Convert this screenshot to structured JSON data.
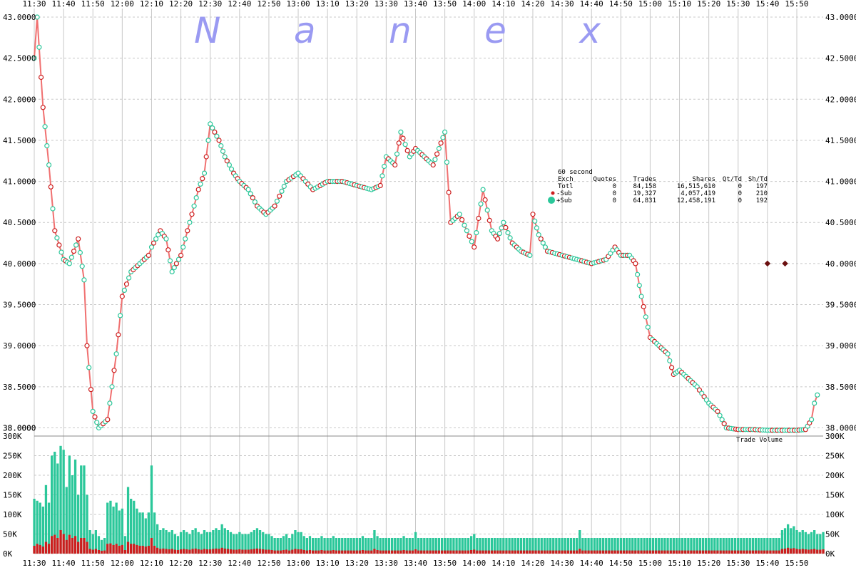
{
  "watermark": "Nanex",
  "colors": {
    "grid": "#c8c8c8",
    "up": "#2bc79a",
    "down": "#cc1e1e",
    "bar_range": "#f07070",
    "marker": "#6b1010"
  },
  "stats": {
    "title": "60 second",
    "headers": [
      "Exch",
      "Quotes",
      "Trades",
      "Shares",
      "Qt/Td",
      "Sh/Td"
    ],
    "rows": [
      {
        "label": "Totl",
        "quotes": "0",
        "trades": "84,158",
        "shares": "16,515,610",
        "qt_td": "0",
        "sh_td": "197"
      },
      {
        "label": "-Sub",
        "quotes": "0",
        "trades": "19,327",
        "shares": "4,057,419",
        "qt_td": "0",
        "sh_td": "210"
      },
      {
        "label": "+Sub",
        "quotes": "0",
        "trades": "64,831",
        "shares": "12,458,191",
        "qt_td": "0",
        "sh_td": "192"
      }
    ]
  },
  "chart_data": [
    {
      "type": "line",
      "ylim": [
        37.9,
        43.0
      ],
      "yticks": [
        "43.0000",
        "42.5000",
        "42.0000",
        "41.5000",
        "41.0000",
        "40.5000",
        "40.0000",
        "39.5000",
        "39.0000",
        "38.5000",
        "38.0000"
      ],
      "xticks": [
        "11:30",
        "11:40",
        "11:50",
        "12:00",
        "12:10",
        "12:20",
        "12:30",
        "12:40",
        "12:50",
        "13:00",
        "13:10",
        "13:20",
        "13:30",
        "13:40",
        "13:50",
        "14:00",
        "14:10",
        "14:20",
        "14:30",
        "14:40",
        "14:50",
        "15:00",
        "15:10",
        "15:20",
        "15:30",
        "15:40",
        "15:50"
      ],
      "grid": true,
      "x": [
        "11:30",
        "11:31",
        "11:33",
        "11:35",
        "11:37",
        "11:40",
        "11:42",
        "11:45",
        "11:47",
        "11:48",
        "11:50",
        "11:52",
        "11:55",
        "11:58",
        "12:00",
        "12:03",
        "12:06",
        "12:09",
        "12:10",
        "12:13",
        "12:15",
        "12:17",
        "12:20",
        "12:23",
        "12:26",
        "12:28",
        "12:30",
        "12:33",
        "12:35",
        "12:38",
        "12:40",
        "12:43",
        "12:46",
        "12:49",
        "12:52",
        "12:56",
        "13:00",
        "13:05",
        "13:10",
        "13:15",
        "13:20",
        "13:25",
        "13:28",
        "13:30",
        "13:33",
        "13:35",
        "13:38",
        "13:40",
        "13:43",
        "13:46",
        "13:48",
        "13:50",
        "13:52",
        "13:55",
        "14:00",
        "14:03",
        "14:06",
        "14:08",
        "14:10",
        "14:13",
        "14:16",
        "14:19",
        "14:20",
        "14:22",
        "14:25",
        "14:30",
        "14:35",
        "14:40",
        "14:45",
        "14:48",
        "14:50",
        "14:53",
        "14:55",
        "14:57",
        "15:00",
        "15:03",
        "15:06",
        "15:08",
        "15:10",
        "15:13",
        "15:16",
        "15:20",
        "15:23",
        "15:26",
        "15:30",
        "15:35",
        "15:40",
        "15:45",
        "15:50",
        "15:53",
        "15:55",
        "15:56",
        "15:57"
      ],
      "y": [
        42.5,
        43.0,
        41.9,
        41.2,
        40.4,
        40.05,
        40.0,
        40.3,
        39.8,
        39.0,
        38.2,
        38.0,
        38.1,
        38.9,
        39.6,
        39.9,
        40.0,
        40.1,
        40.2,
        40.4,
        40.3,
        39.9,
        40.1,
        40.5,
        40.9,
        41.1,
        41.7,
        41.5,
        41.3,
        41.1,
        41.0,
        40.9,
        40.7,
        40.6,
        40.7,
        41.0,
        41.1,
        40.9,
        41.0,
        41.0,
        40.95,
        40.9,
        40.95,
        41.3,
        41.2,
        41.6,
        41.3,
        41.4,
        41.3,
        41.2,
        41.4,
        41.6,
        40.5,
        40.6,
        40.2,
        40.9,
        40.4,
        40.3,
        40.5,
        40.25,
        40.15,
        40.1,
        40.6,
        40.35,
        40.15,
        40.1,
        40.05,
        40.0,
        40.05,
        40.2,
        40.1,
        40.1,
        40.0,
        39.6,
        39.1,
        39.0,
        38.9,
        38.65,
        38.7,
        38.6,
        38.5,
        38.3,
        38.2,
        38.0,
        37.98,
        37.98,
        37.97,
        37.97,
        37.97,
        37.98,
        38.1,
        38.3,
        38.4
      ],
      "outliers": [
        {
          "x": "15:40",
          "y": 40.0
        },
        {
          "x": "15:46",
          "y": 40.0
        }
      ]
    },
    {
      "type": "bar",
      "name": "Trade Volume",
      "ylim": [
        0,
        300000
      ],
      "yticks": [
        "300K",
        "250K",
        "200K",
        "150K",
        "100K",
        "50K",
        "0K"
      ],
      "xticks": [
        "11:30",
        "11:40",
        "11:50",
        "12:00",
        "12:10",
        "12:20",
        "12:30",
        "12:40",
        "12:50",
        "13:00",
        "13:10",
        "13:20",
        "13:30",
        "13:40",
        "13:50",
        "14:00",
        "14:10",
        "14:20",
        "14:30",
        "14:40",
        "14:50",
        "15:00",
        "15:10",
        "15:20",
        "15:30",
        "15:40",
        "15:50"
      ],
      "interval": "60 second",
      "start": "11:30",
      "total_values": [
        140000,
        135000,
        130000,
        120000,
        175000,
        130000,
        250000,
        260000,
        230000,
        275000,
        265000,
        170000,
        250000,
        200000,
        240000,
        150000,
        225000,
        225000,
        150000,
        60000,
        50000,
        60000,
        45000,
        35000,
        40000,
        130000,
        135000,
        120000,
        130000,
        110000,
        115000,
        45000,
        170000,
        140000,
        135000,
        115000,
        105000,
        105000,
        90000,
        105000,
        225000,
        105000,
        75000,
        60000,
        65000,
        60000,
        55000,
        60000,
        50000,
        45000,
        55000,
        60000,
        55000,
        50000,
        60000,
        65000,
        55000,
        50000,
        60000,
        55000,
        55000,
        60000,
        65000,
        60000,
        75000,
        65000,
        60000,
        55000,
        50000,
        50000,
        55000,
        50000,
        50000,
        50000,
        55000,
        60000,
        65000,
        60000,
        55000,
        50000,
        50000,
        45000,
        40000,
        40000,
        40000,
        45000,
        50000,
        40000,
        50000,
        60000,
        55000,
        55000,
        45000,
        40000,
        45000,
        40000,
        40000,
        40000,
        45000,
        40000,
        40000,
        40000,
        45000,
        40000,
        40000,
        40000,
        40000,
        40000,
        40000,
        40000,
        40000,
        40000,
        45000,
        40000,
        40000,
        40000,
        60000,
        45000,
        40000,
        40000,
        40000,
        40000,
        40000,
        40000,
        40000,
        40000,
        45000,
        40000,
        40000,
        40000,
        55000,
        40000,
        40000,
        40000,
        40000,
        40000,
        40000,
        40000,
        40000,
        40000,
        40000,
        40000,
        40000,
        40000,
        40000,
        40000,
        40000,
        40000,
        40000,
        45000,
        50000,
        40000,
        40000,
        40000,
        40000,
        40000,
        40000,
        40000,
        40000,
        40000,
        40000,
        40000,
        40000,
        40000,
        40000,
        40000,
        40000,
        40000,
        40000,
        40000,
        40000,
        40000,
        40000,
        40000,
        40000,
        40000,
        40000,
        40000,
        40000,
        40000,
        40000,
        40000,
        40000,
        40000,
        40000,
        40000,
        60000,
        40000,
        40000,
        40000,
        40000,
        40000,
        40000,
        40000,
        40000,
        40000,
        40000,
        40000,
        40000,
        40000,
        40000,
        40000,
        40000,
        40000,
        40000,
        40000,
        40000,
        40000,
        40000,
        40000,
        40000,
        40000,
        40000,
        40000,
        40000,
        40000,
        40000,
        40000,
        40000,
        40000,
        40000,
        40000,
        40000,
        40000,
        40000,
        40000,
        40000,
        40000,
        40000,
        40000,
        40000,
        40000,
        40000,
        40000,
        40000,
        40000,
        40000,
        40000,
        40000,
        40000,
        40000,
        40000,
        40000,
        40000,
        40000,
        40000,
        40000,
        40000,
        40000,
        40000,
        40000,
        40000,
        40000,
        40000,
        40000,
        60000,
        65000,
        75000,
        65000,
        70000,
        60000,
        55000,
        60000,
        55000,
        50000,
        55000,
        60000,
        50000,
        50000,
        55000,
        50000,
        45000,
        55000,
        50000,
        50000,
        55000,
        60000,
        55000,
        50000,
        55000,
        55000,
        60000,
        65000,
        70000,
        65000,
        60000,
        55000,
        70000,
        75000,
        80000,
        75000,
        65000,
        60000,
        55000,
        60000,
        65000,
        70000,
        85000
      ],
      "sell_values": [
        20000,
        25000,
        22000,
        18000,
        30000,
        25000,
        45000,
        48000,
        40000,
        60000,
        50000,
        35000,
        48000,
        40000,
        45000,
        30000,
        40000,
        40000,
        30000,
        12000,
        10000,
        12000,
        9000,
        7000,
        8000,
        25000,
        26000,
        22000,
        25000,
        20000,
        22000,
        9000,
        30000,
        25000,
        25000,
        22000,
        20000,
        20000,
        18000,
        20000,
        40000,
        20000,
        15000,
        12000,
        13000,
        12000,
        11000,
        12000,
        10000,
        9000,
        11000,
        12000,
        11000,
        10000,
        12000,
        13000,
        11000,
        10000,
        12000,
        11000,
        11000,
        12000,
        13000,
        12000,
        15000,
        13000,
        12000,
        11000,
        10000,
        10000,
        11000,
        10000,
        10000,
        10000,
        11000,
        12000,
        13000,
        12000,
        11000,
        10000,
        10000,
        9000,
        8000,
        8000,
        8000,
        9000,
        10000,
        8000,
        10000,
        12000,
        11000,
        11000,
        9000,
        8000,
        9000,
        8000,
        8000,
        8000,
        9000,
        8000,
        8000,
        8000,
        9000,
        8000,
        8000,
        8000,
        8000,
        8000,
        8000,
        8000,
        8000,
        8000,
        9000,
        8000,
        8000,
        8000,
        12000,
        9000,
        8000,
        8000,
        8000,
        8000,
        8000,
        8000,
        8000,
        8000,
        9000,
        8000,
        8000,
        8000,
        11000,
        8000,
        8000,
        8000,
        8000,
        8000,
        8000,
        8000,
        8000,
        8000,
        8000,
        8000,
        8000,
        8000,
        8000,
        8000,
        8000,
        8000,
        8000,
        9000,
        10000,
        8000,
        8000,
        8000,
        8000,
        8000,
        8000,
        8000,
        8000,
        8000,
        8000,
        8000,
        8000,
        8000,
        8000,
        8000,
        8000,
        8000,
        8000,
        8000,
        8000,
        8000,
        8000,
        8000,
        8000,
        8000,
        8000,
        8000,
        8000,
        8000,
        8000,
        8000,
        8000,
        8000,
        8000,
        8000,
        12000,
        8000,
        8000,
        8000,
        8000,
        8000,
        8000,
        8000,
        8000,
        8000,
        8000,
        8000,
        8000,
        8000,
        8000,
        8000,
        8000,
        8000,
        8000,
        8000,
        8000,
        8000,
        8000,
        8000,
        8000,
        8000,
        8000,
        8000,
        8000,
        8000,
        8000,
        8000,
        8000,
        8000,
        8000,
        8000,
        8000,
        8000,
        8000,
        8000,
        8000,
        8000,
        8000,
        8000,
        8000,
        8000,
        8000,
        8000,
        8000,
        8000,
        8000,
        8000,
        8000,
        8000,
        8000,
        8000,
        8000,
        8000,
        8000,
        8000,
        8000,
        8000,
        8000,
        8000,
        8000,
        8000,
        8000,
        8000,
        8000,
        12000,
        13000,
        15000,
        13000,
        14000,
        12000,
        11000,
        12000,
        11000,
        10000,
        11000,
        12000,
        10000,
        10000,
        11000,
        10000,
        9000,
        11000,
        10000,
        10000,
        11000,
        12000,
        11000,
        10000,
        11000,
        11000,
        12000,
        13000,
        14000,
        13000,
        12000,
        11000,
        14000,
        18000,
        22000,
        25000,
        20000,
        18000,
        15000,
        20000,
        25000,
        30000,
        35000
      ]
    }
  ]
}
